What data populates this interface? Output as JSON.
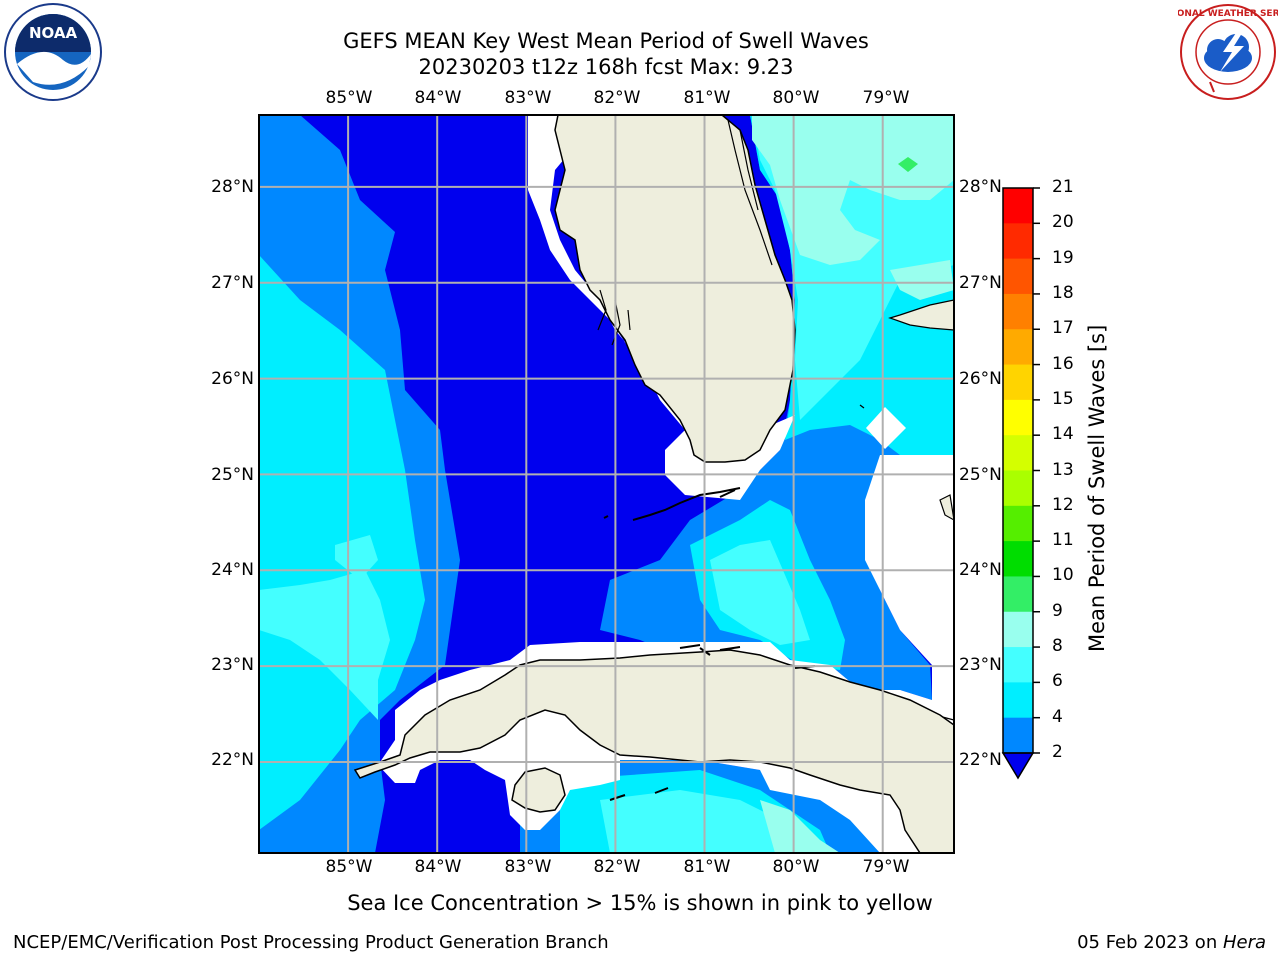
{
  "header": {
    "title_line1": "GEFS MEAN Key West Mean Period of Swell Waves",
    "title_line2": "20230203 t12z 168h fcst   Max: 9.23"
  },
  "logos": {
    "left": {
      "name": "noaa-logo",
      "text": "NOAA"
    },
    "right": {
      "name": "nws-logo",
      "text": "NATIONAL WEATHER SERVICE"
    }
  },
  "map": {
    "lon_labels": [
      "85°W",
      "84°W",
      "83°W",
      "82°W",
      "81°W",
      "80°W",
      "79°W"
    ],
    "lat_labels": [
      "28°N",
      "27°N",
      "26°N",
      "25°N",
      "24°N",
      "23°N",
      "22°N"
    ],
    "lon_range": [
      -86.0,
      -78.2
    ],
    "lat_range": [
      21.05,
      28.75
    ]
  },
  "colorbar": {
    "label": "Mean Period of Swell Waves [s]",
    "ticks": [
      "21",
      "20",
      "19",
      "18",
      "17",
      "16",
      "15",
      "14",
      "13",
      "12",
      "11",
      "10",
      "9",
      "8",
      "6",
      "4",
      "2"
    ],
    "colors": [
      "#ff0000",
      "#ff2a00",
      "#ff5500",
      "#ff8000",
      "#ffaa00",
      "#ffd400",
      "#ffff00",
      "#d4ff00",
      "#aaff00",
      "#55ee00",
      "#00dd00",
      "#33ee66",
      "#99ffee",
      "#44ffff",
      "#00eeff",
      "#0088ff",
      "#0000ee"
    ],
    "under_color": "#0000ee"
  },
  "colors": {
    "deep_blue": "#0000ee",
    "mid_blue": "#0088ff",
    "cyan": "#00eeff",
    "light_cyan": "#44ffff",
    "pale_cyan": "#99ffee",
    "green": "#33ee66",
    "land": "#eeeedd",
    "grid": "#b0b0b0"
  },
  "footer": {
    "note": "Sea Ice Concentration > 15% is shown in pink to yellow",
    "left": "NCEP/EMC/Verification Post Processing Product Generation Branch",
    "right_date": "05 Feb 2023 on ",
    "right_host": "Hera"
  }
}
